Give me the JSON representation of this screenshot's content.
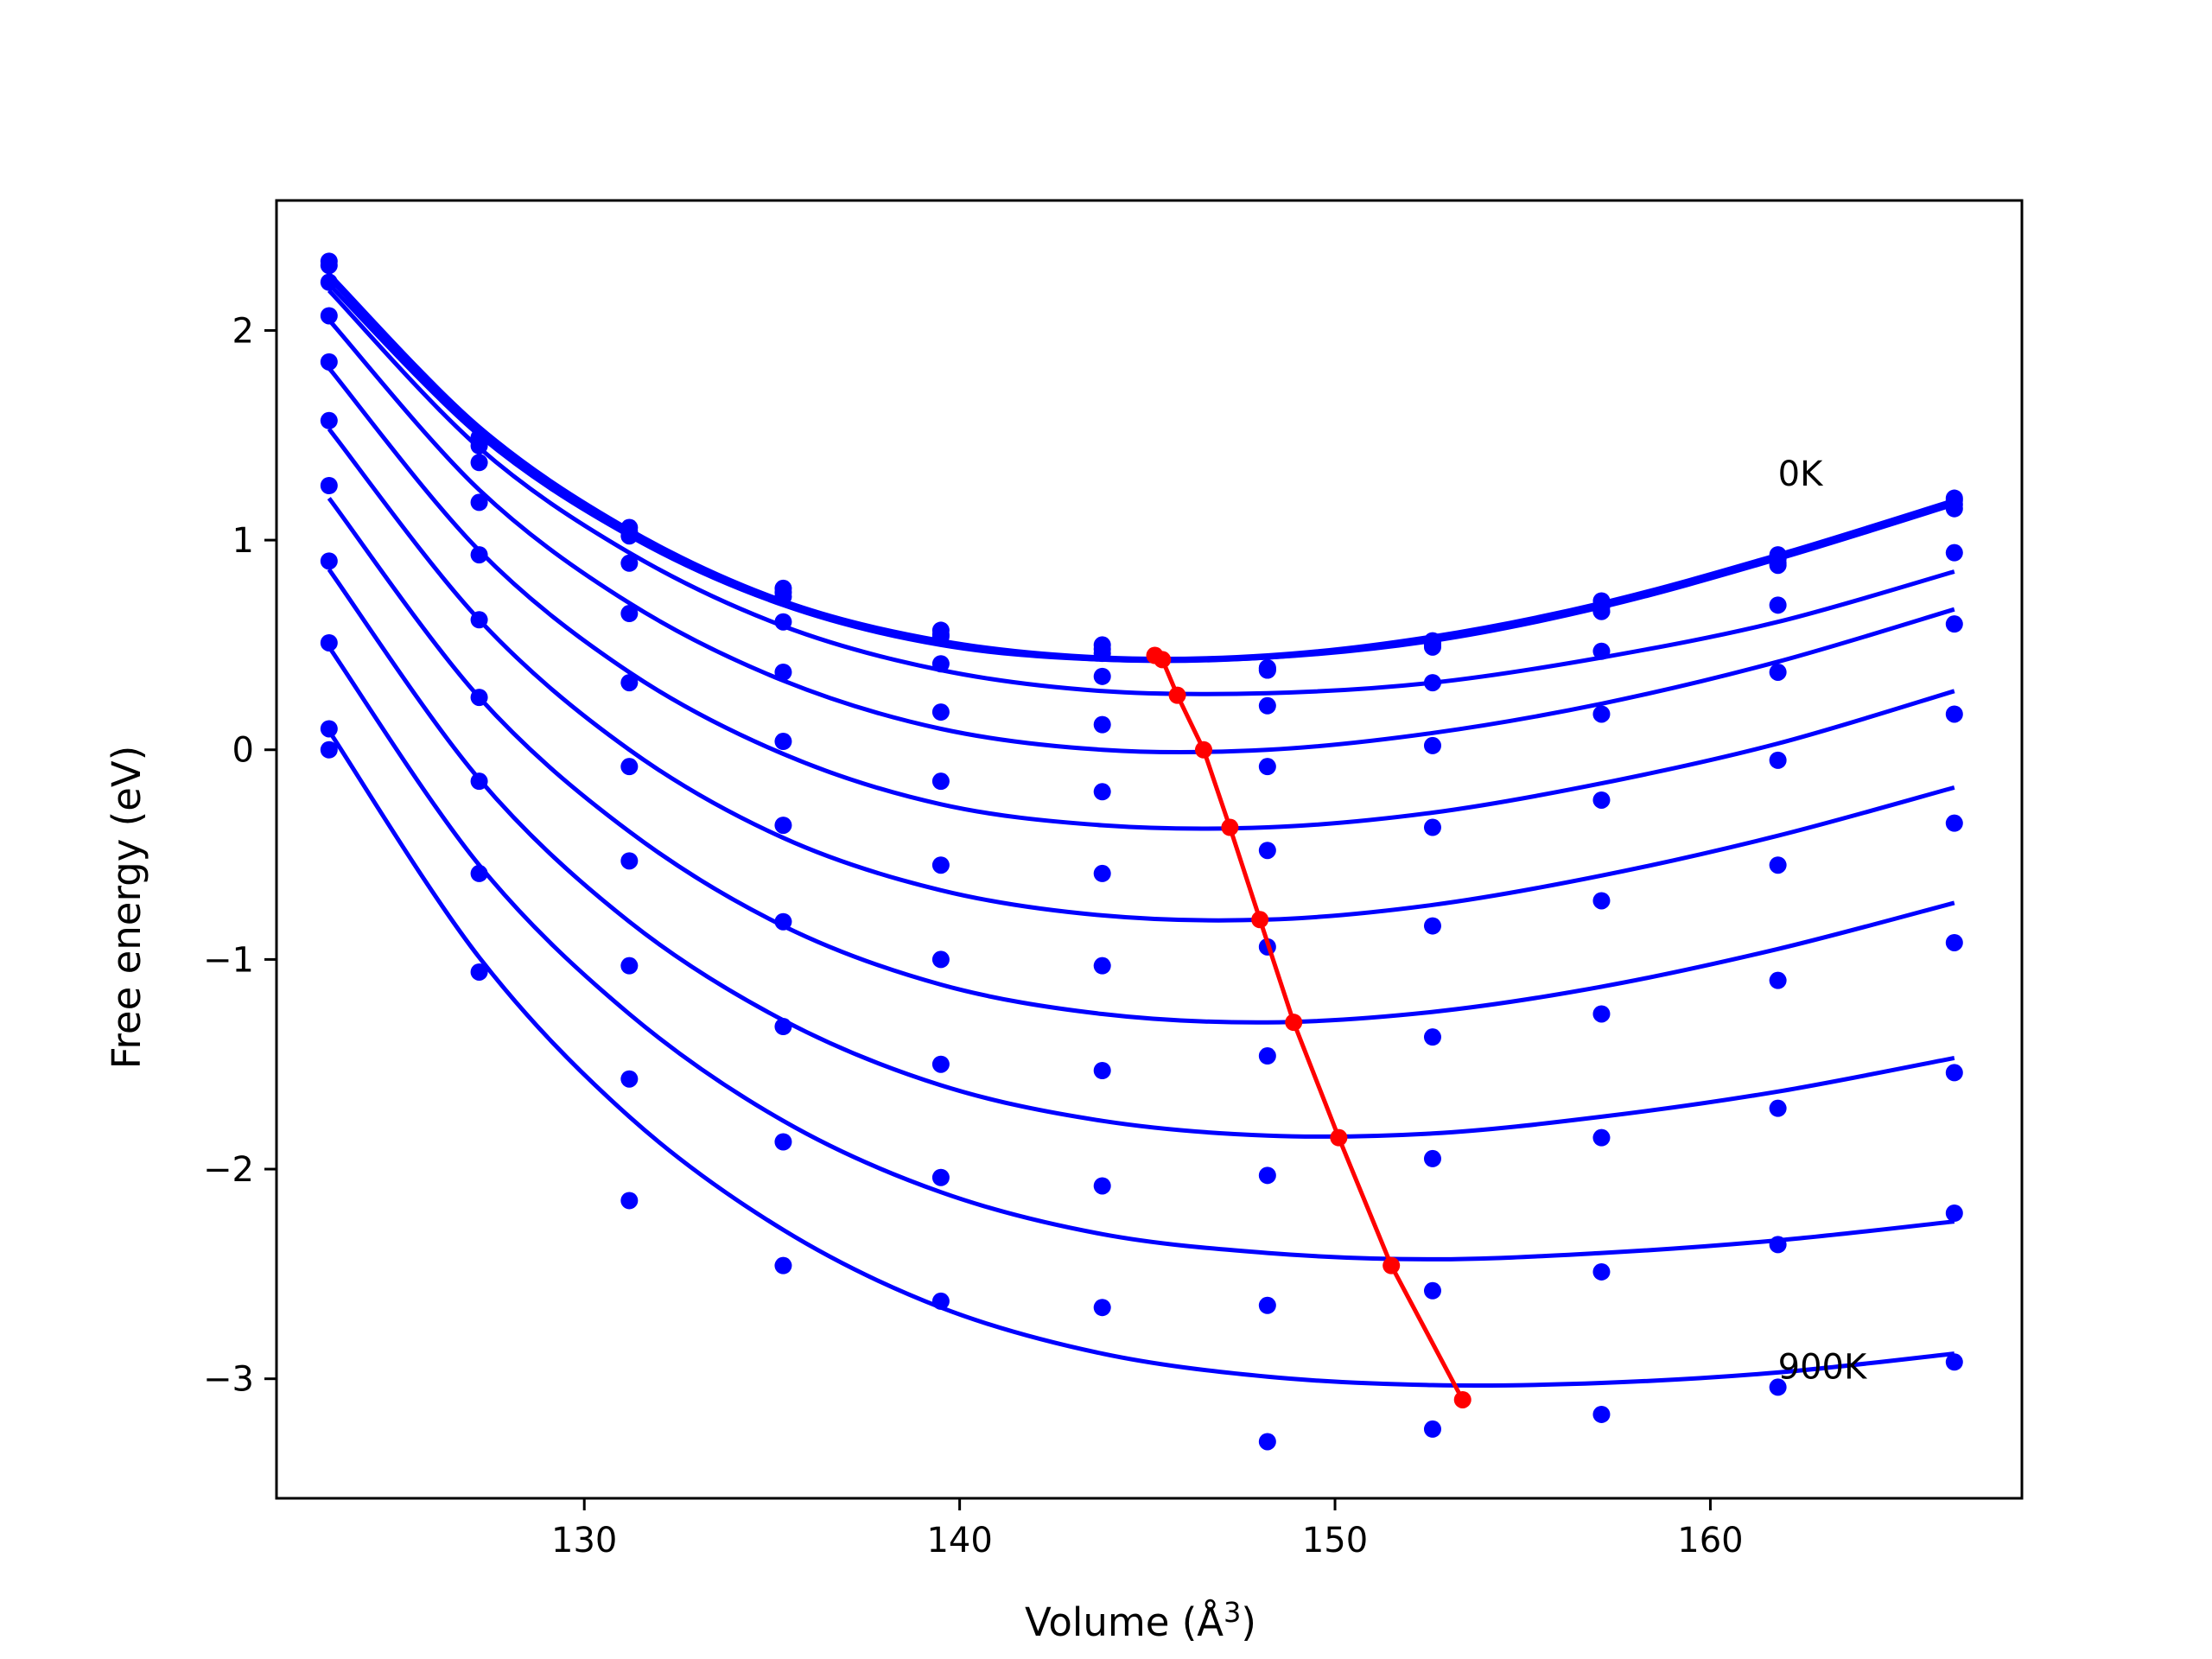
{
  "chart_data": {
    "type": "scatter",
    "title": "",
    "xlabel": "Volume (Å",
    "xlabel_sup": "3",
    "xlabel_close": ")",
    "ylabel": "Free energy (eV)",
    "xlim": [
      121.8,
      168.3
    ],
    "ylim": [
      -3.57,
      2.62
    ],
    "xticks": [
      130,
      140,
      150,
      160
    ],
    "xtick_labels": [
      "130",
      "140",
      "150",
      "160"
    ],
    "yticks": [
      -3,
      -2,
      -1,
      0,
      1,
      2
    ],
    "ytick_labels": [
      "−3",
      "−2",
      "−1",
      "0",
      "1",
      "2"
    ],
    "grid": false,
    "legend": "none",
    "colors": {
      "curves": "#0000ff",
      "minima": "#ff0000",
      "frame": "#000000"
    },
    "annotations": [
      {
        "text": "0K",
        "x": 161.8,
        "y": 1.26
      },
      {
        "text": "900K",
        "x": 161.8,
        "y": -3.0
      }
    ],
    "volumes": [
      123.2,
      127.2,
      131.2,
      135.3,
      139.5,
      143.8,
      148.2,
      152.6,
      157.1,
      161.8,
      166.5
    ],
    "series": [
      {
        "points": [
          2.33,
          1.49,
          1.06,
          0.77,
          0.57,
          0.5,
          0.38,
          0.49,
          0.71,
          0.93,
          1.2
        ],
        "fit": [
          2.27,
          1.54,
          1.05,
          0.71,
          0.52,
          0.44,
          0.45,
          0.54,
          0.7,
          0.93,
          1.19
        ]
      },
      {
        "points": [
          2.31,
          1.47,
          1.04,
          0.75,
          0.55,
          0.48,
          0.39,
          0.51,
          0.68,
          0.91,
          1.19
        ],
        "fit": [
          2.25,
          1.52,
          1.03,
          0.7,
          0.51,
          0.43,
          0.44,
          0.53,
          0.69,
          0.92,
          1.18
        ]
      },
      {
        "points": [
          2.23,
          1.45,
          1.02,
          0.73,
          0.54,
          0.46,
          0.39,
          0.52,
          0.66,
          0.89,
          1.17
        ],
        "fit": [
          2.22,
          1.5,
          1.02,
          0.69,
          0.5,
          0.43,
          0.44,
          0.52,
          0.68,
          0.91,
          1.17
        ]
      },
      {
        "points": [
          2.07,
          1.37,
          0.89,
          0.61,
          0.41,
          0.35,
          0.38,
          0.5,
          0.66,
          0.88,
          1.15
        ],
        "fit": [
          2.19,
          1.44,
          0.94,
          0.59,
          0.38,
          0.28,
          0.27,
          0.32,
          0.44,
          0.61,
          0.85
        ]
      },
      {
        "points": [
          1.85,
          1.18,
          0.65,
          0.37,
          0.18,
          0.12,
          0.21,
          0.32,
          0.47,
          0.69,
          0.94
        ],
        "fit": [
          2.05,
          1.24,
          0.7,
          0.33,
          0.1,
          0.0,
          0.0,
          0.08,
          0.22,
          0.42,
          0.67
        ]
      },
      {
        "points": [
          1.57,
          0.93,
          0.32,
          0.04,
          -0.15,
          -0.2,
          -0.08,
          0.02,
          0.17,
          0.37,
          0.6
        ],
        "fit": [
          1.82,
          0.95,
          0.37,
          -0.02,
          -0.26,
          -0.36,
          -0.37,
          -0.3,
          -0.16,
          0.03,
          0.28
        ]
      },
      {
        "points": [
          1.26,
          0.62,
          -0.08,
          -0.36,
          -0.55,
          -0.59,
          -0.48,
          -0.37,
          -0.24,
          -0.05,
          0.17
        ],
        "fit": [
          1.53,
          0.62,
          0.0,
          -0.42,
          -0.67,
          -0.79,
          -0.81,
          -0.74,
          -0.6,
          -0.41,
          -0.18
        ]
      },
      {
        "points": [
          0.9,
          0.25,
          -0.53,
          -0.82,
          -1.0,
          -1.03,
          -0.94,
          -0.84,
          -0.72,
          -0.55,
          -0.35
        ],
        "fit": [
          1.2,
          0.25,
          -0.39,
          -0.84,
          -1.12,
          -1.26,
          -1.3,
          -1.25,
          -1.13,
          -0.95,
          -0.73
        ]
      },
      {
        "points": [
          0.51,
          -0.15,
          -1.03,
          -1.32,
          -1.5,
          -1.53,
          -1.46,
          -1.37,
          -1.26,
          -1.1,
          -0.92
        ],
        "fit": [
          0.86,
          -0.14,
          -0.82,
          -1.29,
          -1.6,
          -1.77,
          -1.84,
          -1.83,
          -1.75,
          -1.63,
          -1.47
        ]
      },
      {
        "points": [
          0.1,
          -0.59,
          -1.57,
          -1.87,
          -2.04,
          -2.08,
          -2.03,
          -1.95,
          -1.85,
          -1.71,
          -1.54
        ],
        "fit": [
          0.49,
          -0.55,
          -1.26,
          -1.77,
          -2.11,
          -2.31,
          -2.4,
          -2.43,
          -2.4,
          -2.34,
          -2.25
        ]
      },
      {
        "points": [
          0.0,
          -1.06,
          -2.15,
          -2.46,
          -2.63,
          -2.66,
          -2.65,
          -2.58,
          -2.49,
          -2.36,
          -2.21
        ],
        "fit": [
          0.09,
          -0.99,
          -1.75,
          -2.29,
          -2.66,
          -2.88,
          -2.99,
          -3.03,
          -3.02,
          -2.97,
          -2.88
        ]
      },
      {
        "points": [
          null,
          null,
          null,
          null,
          null,
          null,
          -3.3,
          -3.24,
          -3.17,
          -3.04,
          -2.92
        ],
        "fit": null
      }
    ],
    "minima": {
      "x": [
        145.2,
        145.4,
        145.8,
        146.5,
        147.2,
        148.0,
        148.9,
        150.1,
        151.5,
        153.4
      ],
      "y": [
        0.45,
        0.43,
        0.26,
        0.0,
        -0.37,
        -0.81,
        -1.3,
        -1.85,
        -2.46,
        -3.1
      ]
    }
  }
}
